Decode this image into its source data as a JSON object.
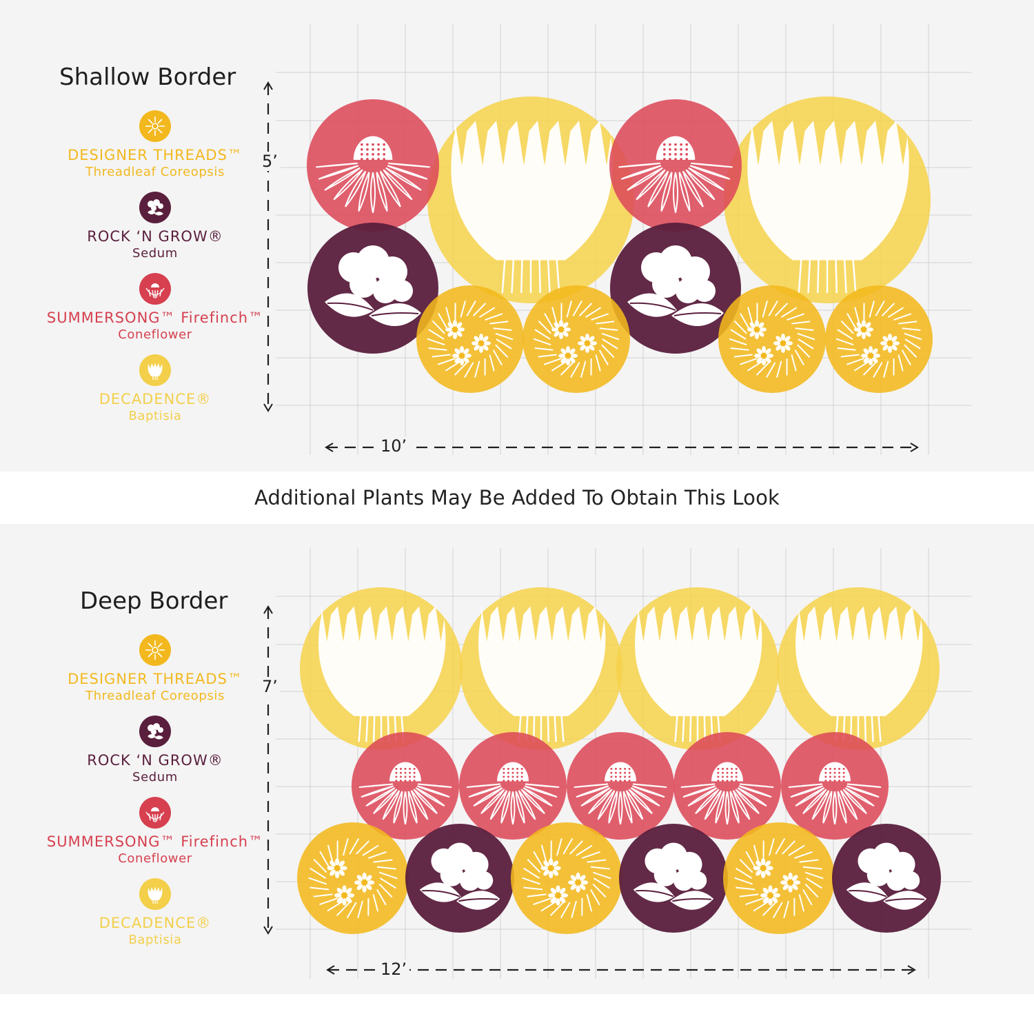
{
  "caption": "Additional Plants May Be Added To Obtain This Look",
  "colors": {
    "coreopsis": "#f2b81e",
    "sedum": "#5a1f3d",
    "coneflower": "#dd4a5a",
    "baptisia": "#f6d24a",
    "grid": "#d2d2d2",
    "panel": "#f4f4f4"
  },
  "legend": [
    {
      "key": "coreopsis",
      "name": "DESIGNER THREADS™",
      "sub": "Threadleaf Coreopsis",
      "color": "#f2b81e",
      "icon": "coreopsis-icon"
    },
    {
      "key": "sedum",
      "name": "ROCK ‘N GROW®",
      "sub": "Sedum",
      "color": "#5a1f3d",
      "icon": "sedum-icon"
    },
    {
      "key": "coneflower",
      "name": "SUMMERSONG™ Firefinch™",
      "sub": "Coneflower",
      "color": "#d6404f",
      "icon": "coneflower-icon"
    },
    {
      "key": "baptisia",
      "name": "DECADENCE®",
      "sub": "Baptisia",
      "color": "#f3cf4a",
      "icon": "baptisia-icon"
    }
  ],
  "shallow": {
    "title": "Shallow Border",
    "depth_label": "5’",
    "width_label": "10’",
    "plants": {
      "baptisia": 2,
      "coneflower": 2,
      "sedum": 2,
      "coreopsis": 4
    }
  },
  "deep": {
    "title": "Deep Border",
    "depth_label": "7’",
    "width_label": "12’",
    "plants": {
      "baptisia": 4,
      "coneflower": 5,
      "sedum": 3,
      "coreopsis": 3
    }
  }
}
